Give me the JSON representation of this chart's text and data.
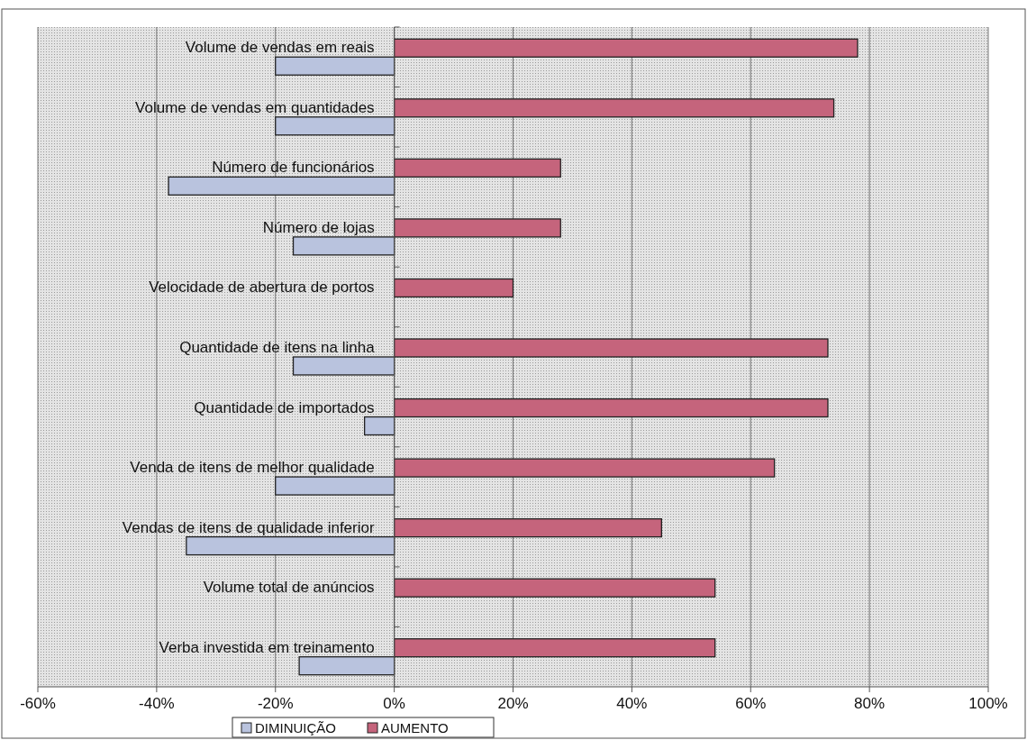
{
  "chart_data": {
    "type": "bar",
    "orientation": "horizontal",
    "categories": [
      "Volume de vendas em reais",
      "Volume de vendas em quantidades",
      "Número de funcionários",
      "Número de lojas",
      "Velocidade de abertura de portos",
      "Quantidade de itens na linha",
      "Quantidade de importados",
      "Venda de itens de melhor qualidade",
      "Vendas de itens de qualidade inferior",
      "Volume total de anúncios",
      "Verba investida em treinamento"
    ],
    "series": [
      {
        "name": "DIMINUIÇÃO",
        "color": "#b9c3de",
        "values": [
          -20,
          -20,
          -38,
          -17,
          null,
          -17,
          -5,
          -20,
          -35,
          null,
          -16
        ]
      },
      {
        "name": "AUMENTO",
        "color": "#c5647c",
        "values": [
          78,
          74,
          28,
          28,
          20,
          73,
          73,
          64,
          45,
          54,
          54
        ]
      }
    ],
    "xlim": [
      -60,
      100
    ],
    "xticks": [
      {
        "value": -60,
        "label": "-60%"
      },
      {
        "value": -40,
        "label": "-40%"
      },
      {
        "value": -20,
        "label": "-20%"
      },
      {
        "value": 0,
        "label": "0%"
      },
      {
        "value": 20,
        "label": "20%"
      },
      {
        "value": 40,
        "label": "40%"
      },
      {
        "value": 60,
        "label": "60%"
      },
      {
        "value": 80,
        "label": "80%"
      },
      {
        "value": 100,
        "label": "100%"
      }
    ],
    "grid": "x",
    "legend": "bottom"
  }
}
